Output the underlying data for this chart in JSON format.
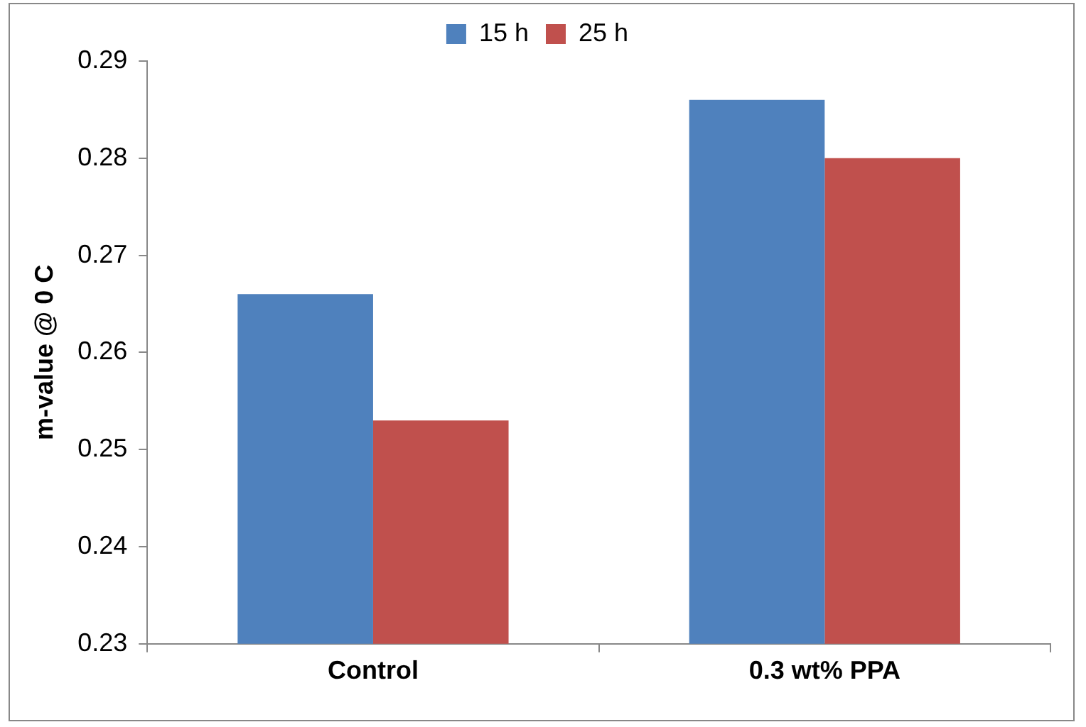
{
  "chart_data": {
    "type": "bar",
    "ylabel": "m-value @ 0 C",
    "categories": [
      "Control",
      "0.3 wt% PPA"
    ],
    "series": [
      {
        "name": "15 h",
        "color": "#4f81bd",
        "values": [
          0.266,
          0.286
        ]
      },
      {
        "name": "25 h",
        "color": "#c0504d",
        "values": [
          0.253,
          0.28
        ]
      }
    ],
    "ylim": [
      0.23,
      0.29
    ],
    "yticks": [
      0.23,
      0.24,
      0.25,
      0.26,
      0.27,
      0.28,
      0.29
    ],
    "legend": "top"
  }
}
